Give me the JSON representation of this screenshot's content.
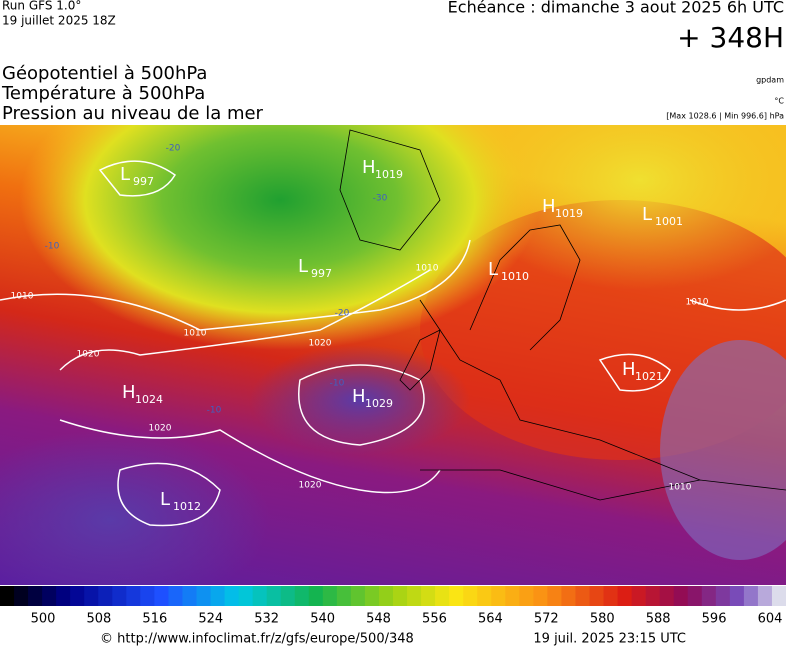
{
  "header": {
    "run": "Run GFS 1.0°",
    "date": "19 juillet 2025 18Z",
    "forecast": "Echéance : dimanche 3 aout 2025 6h UTC",
    "lead": "+ 348H",
    "fields": [
      "Géopotentiel à 500hPa",
      "Température à 500hPa",
      "Pression au niveau de la mer"
    ],
    "unit_geopotential": "gpdam",
    "unit_temperature": "°C",
    "pressure_range": "[Max 1028.6 | Min 996.6] hPa"
  },
  "centers": [
    {
      "kind": "L",
      "value": "997"
    },
    {
      "kind": "H",
      "value": "1019"
    },
    {
      "kind": "H",
      "value": "1019"
    },
    {
      "kind": "L",
      "value": "1001"
    },
    {
      "kind": "L",
      "value": "997"
    },
    {
      "kind": "L",
      "value": "1010"
    },
    {
      "kind": "H",
      "value": "1021"
    },
    {
      "kind": "H",
      "value": "1024"
    },
    {
      "kind": "H",
      "value": "1029"
    },
    {
      "kind": "L",
      "value": "1012"
    }
  ],
  "isobar_labels": [
    "1010",
    "1010",
    "1010",
    "1010",
    "1010",
    "1020",
    "1020",
    "1020",
    "1020"
  ],
  "isotherm_labels": [
    "-20",
    "-20",
    "-10",
    "-10",
    "-10",
    "-30"
  ],
  "colorbar": {
    "ticks": [
      500,
      508,
      516,
      524,
      532,
      540,
      548,
      556,
      564,
      572,
      580,
      588,
      596,
      604
    ]
  },
  "footer": {
    "source": "© http://www.infoclimat.fr/z/gfs/europe/500/348",
    "generated": "19 juil. 2025 23:15 UTC"
  }
}
